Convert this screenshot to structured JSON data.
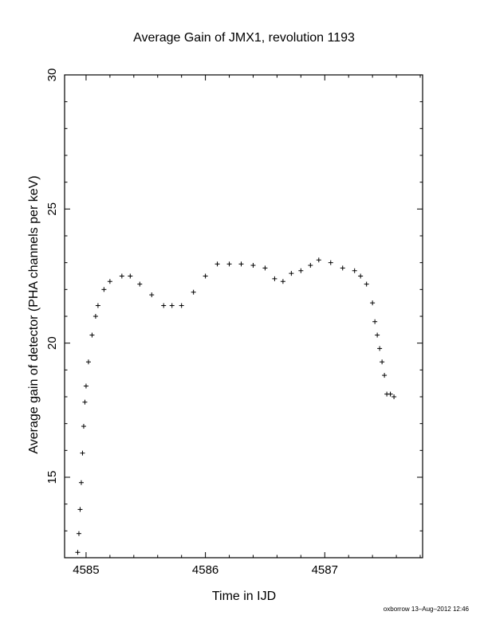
{
  "chart_data": {
    "type": "scatter",
    "title": "Average Gain of JMX1, revolution 1193",
    "xlabel": "Time in IJD",
    "ylabel": "Average gain of detector (PHA channels per keV)",
    "xlim": [
      4584.82,
      4587.82
    ],
    "ylim": [
      12,
      30
    ],
    "x_ticks": [
      4585,
      4586,
      4587
    ],
    "y_ticks": [
      15,
      20,
      25,
      30
    ],
    "grid": false,
    "marker": "+",
    "series": [
      {
        "marker_color": "#000000",
        "x": [
          4584.93,
          4584.94,
          4584.95,
          4584.96,
          4584.97,
          4584.98,
          4584.99,
          4585.0,
          4585.02,
          4585.05,
          4585.08,
          4585.1,
          4585.15,
          4585.2,
          4585.3,
          4585.37,
          4585.45,
          4585.55,
          4585.65,
          4585.72,
          4585.8,
          4585.9,
          4586.0,
          4586.1,
          4586.2,
          4586.3,
          4586.4,
          4586.5,
          4586.58,
          4586.65,
          4586.72,
          4586.8,
          4586.88,
          4586.95,
          4587.05,
          4587.15,
          4587.25,
          4587.3,
          4587.35,
          4587.4,
          4587.42,
          4587.44,
          4587.46,
          4587.48,
          4587.5,
          4587.52,
          4587.55,
          4587.58
        ],
        "y": [
          12.2,
          12.9,
          13.8,
          14.8,
          15.9,
          16.9,
          17.8,
          18.4,
          19.3,
          20.3,
          21.0,
          21.4,
          22.0,
          22.3,
          22.5,
          22.5,
          22.2,
          21.8,
          21.4,
          21.4,
          21.4,
          21.9,
          22.5,
          22.95,
          22.95,
          22.95,
          22.9,
          22.8,
          22.4,
          22.3,
          22.6,
          22.7,
          22.9,
          23.1,
          23.0,
          22.8,
          22.7,
          22.5,
          22.2,
          21.5,
          20.8,
          20.3,
          19.8,
          19.3,
          18.8,
          18.1,
          18.1,
          18.0
        ]
      }
    ]
  },
  "footer": {
    "credit": "oxborrow 13–Aug–2012 12:46"
  }
}
